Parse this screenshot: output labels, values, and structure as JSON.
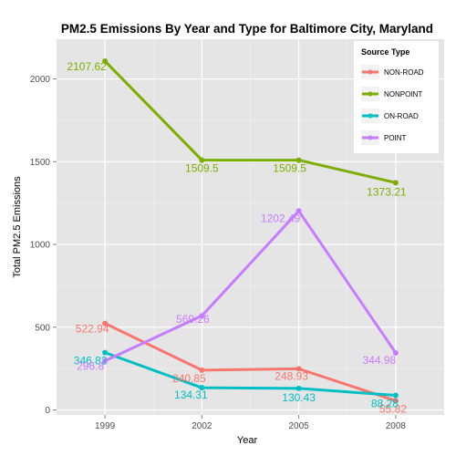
{
  "chart_data": {
    "type": "line",
    "title": "PM2.5 Emissions By Year and Type for Baltimore City, Maryland",
    "xlabel": "Year",
    "ylabel": "Total PM2.5 Emissions",
    "x": [
      1999,
      2002,
      2005,
      2008
    ],
    "x_tick_labels": [
      "1999",
      "2002",
      "2005",
      "2008"
    ],
    "y_ticks": [
      0,
      500,
      1000,
      1500,
      2000
    ],
    "y_tick_labels": [
      "0",
      "500",
      "1000",
      "1500",
      "2000"
    ],
    "ylim": [
      -30,
      2240
    ],
    "xlim": [
      1997.5,
      2009.5
    ],
    "grid": true,
    "legend": {
      "title": "Source Type",
      "placement": "top-right"
    },
    "series": [
      {
        "name": "NON-ROAD",
        "color": "#F8766D",
        "values": [
          522.94,
          240.85,
          248.93,
          55.82
        ],
        "labels": [
          "522.94",
          "240.85",
          "248.93",
          "55.82"
        ]
      },
      {
        "name": "NONPOINT",
        "color": "#7CAE00",
        "values": [
          2107.62,
          1509.5,
          1509.5,
          1373.21
        ],
        "labels": [
          "2107.62",
          "1509.5",
          "1509.5",
          "1373.21"
        ]
      },
      {
        "name": "ON-ROAD",
        "color": "#00BFC4",
        "values": [
          346.82,
          134.31,
          130.43,
          88.28
        ],
        "labels": [
          "346.82",
          "134.31",
          "130.43",
          "88.28"
        ]
      },
      {
        "name": "POINT",
        "color": "#C77CFF",
        "values": [
          296.8,
          569.26,
          1202.49,
          344.98
        ],
        "labels": [
          "296.8",
          "569.26",
          "1202.49",
          "344.98"
        ]
      }
    ]
  }
}
